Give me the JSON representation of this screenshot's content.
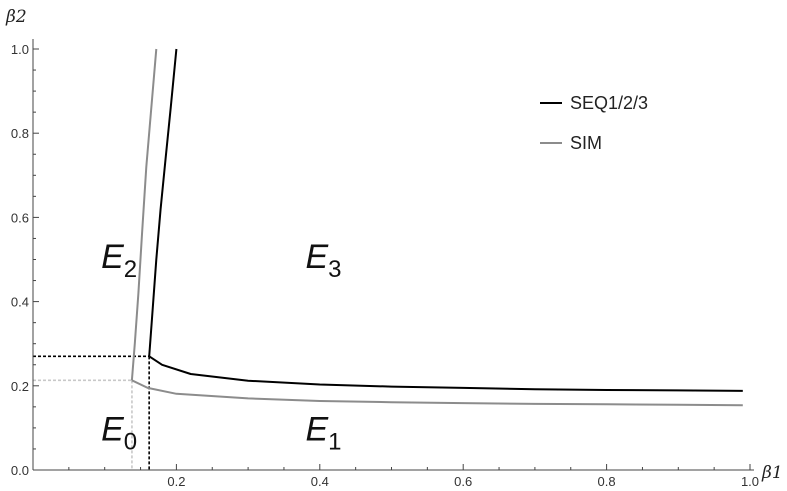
{
  "chart_data": {
    "type": "line",
    "xlabel": "β1",
    "ylabel": "β2",
    "xlim": [
      0,
      1.0
    ],
    "ylim": [
      0,
      1.0
    ],
    "x_ticks": [
      0.2,
      0.4,
      0.6,
      0.8,
      1.0
    ],
    "x_tick_labels": [
      "0.2",
      "0.4",
      "0.6",
      "0.8",
      "1.0"
    ],
    "y_ticks": [
      0.0,
      0.2,
      0.4,
      0.6,
      0.8,
      1.0
    ],
    "y_tick_labels": [
      "0.0",
      "0.2",
      "0.4",
      "0.6",
      "0.8",
      "1.0"
    ],
    "legend_position": "top-right",
    "series": [
      {
        "name": "SEQ1/2/3",
        "color": "#000000",
        "segments": [
          [
            [
              0.162,
              0.27
            ],
            [
              0.166,
              0.36
            ],
            [
              0.172,
              0.5
            ],
            [
              0.178,
              0.62
            ],
            [
              0.185,
              0.74
            ],
            [
              0.192,
              0.86
            ],
            [
              0.2,
              1.0
            ]
          ],
          [
            [
              0.162,
              0.27
            ],
            [
              0.18,
              0.25
            ],
            [
              0.22,
              0.228
            ],
            [
              0.3,
              0.212
            ],
            [
              0.4,
              0.203
            ],
            [
              0.5,
              0.198
            ],
            [
              0.6,
              0.195
            ],
            [
              0.7,
              0.192
            ],
            [
              0.8,
              0.19
            ],
            [
              0.9,
              0.189
            ],
            [
              0.99,
              0.188
            ]
          ]
        ]
      },
      {
        "name": "SIM",
        "color": "#8c8c8c",
        "segments": [
          [
            [
              0.138,
              0.213
            ],
            [
              0.142,
              0.3
            ],
            [
              0.147,
              0.42
            ],
            [
              0.152,
              0.56
            ],
            [
              0.158,
              0.72
            ],
            [
              0.165,
              0.86
            ],
            [
              0.172,
              1.0
            ]
          ],
          [
            [
              0.138,
              0.213
            ],
            [
              0.16,
              0.195
            ],
            [
              0.2,
              0.181
            ],
            [
              0.3,
              0.17
            ],
            [
              0.4,
              0.164
            ],
            [
              0.5,
              0.161
            ],
            [
              0.6,
              0.159
            ],
            [
              0.7,
              0.157
            ],
            [
              0.8,
              0.156
            ],
            [
              0.9,
              0.155
            ],
            [
              0.99,
              0.154
            ]
          ]
        ]
      }
    ],
    "reference_lines": [
      {
        "color": "#000000",
        "dashed": true,
        "x": 0.162,
        "y": 0.27
      },
      {
        "color": "#c8c8c8",
        "dashed": true,
        "x": 0.138,
        "y": 0.213
      }
    ],
    "regions": [
      {
        "main": "E",
        "sub": "2",
        "x": 0.095,
        "y": 0.48
      },
      {
        "main": "E",
        "sub": "3",
        "x": 0.38,
        "y": 0.48
      },
      {
        "main": "E",
        "sub": "0",
        "x": 0.095,
        "y": 0.07
      },
      {
        "main": "E",
        "sub": "1",
        "x": 0.38,
        "y": 0.07
      }
    ]
  }
}
